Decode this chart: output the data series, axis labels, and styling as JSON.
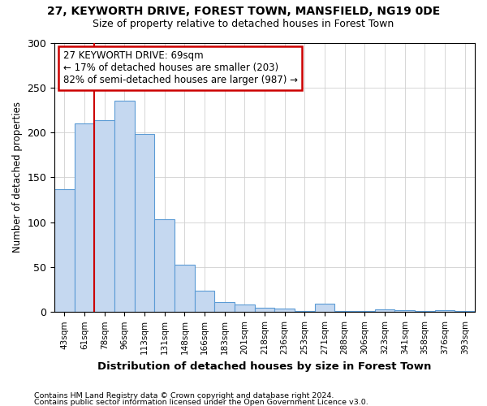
{
  "title1": "27, KEYWORTH DRIVE, FOREST TOWN, MANSFIELD, NG19 0DE",
  "title2": "Size of property relative to detached houses in Forest Town",
  "xlabel": "Distribution of detached houses by size in Forest Town",
  "ylabel": "Number of detached properties",
  "categories": [
    "43sqm",
    "61sqm",
    "78sqm",
    "96sqm",
    "113sqm",
    "131sqm",
    "148sqm",
    "166sqm",
    "183sqm",
    "201sqm",
    "218sqm",
    "236sqm",
    "253sqm",
    "271sqm",
    "288sqm",
    "306sqm",
    "323sqm",
    "341sqm",
    "358sqm",
    "376sqm",
    "393sqm"
  ],
  "values": [
    137,
    210,
    214,
    235,
    198,
    103,
    53,
    24,
    11,
    8,
    5,
    4,
    1,
    9,
    1,
    1,
    3,
    2,
    1,
    2,
    1
  ],
  "bar_color": "#c5d8f0",
  "bar_edge_color": "#5b9bd5",
  "vline_color": "#cc0000",
  "annotation_text": "27 KEYWORTH DRIVE: 69sqm\n← 17% of detached houses are smaller (203)\n82% of semi-detached houses are larger (987) →",
  "annotation_box_color": "white",
  "annotation_box_edge_color": "#cc0000",
  "ylim": [
    0,
    300
  ],
  "yticks": [
    0,
    50,
    100,
    150,
    200,
    250,
    300
  ],
  "footer1": "Contains HM Land Registry data © Crown copyright and database right 2024.",
  "footer2": "Contains public sector information licensed under the Open Government Licence v3.0.",
  "bg_color": "white",
  "grid_color": "#d0d0d0"
}
